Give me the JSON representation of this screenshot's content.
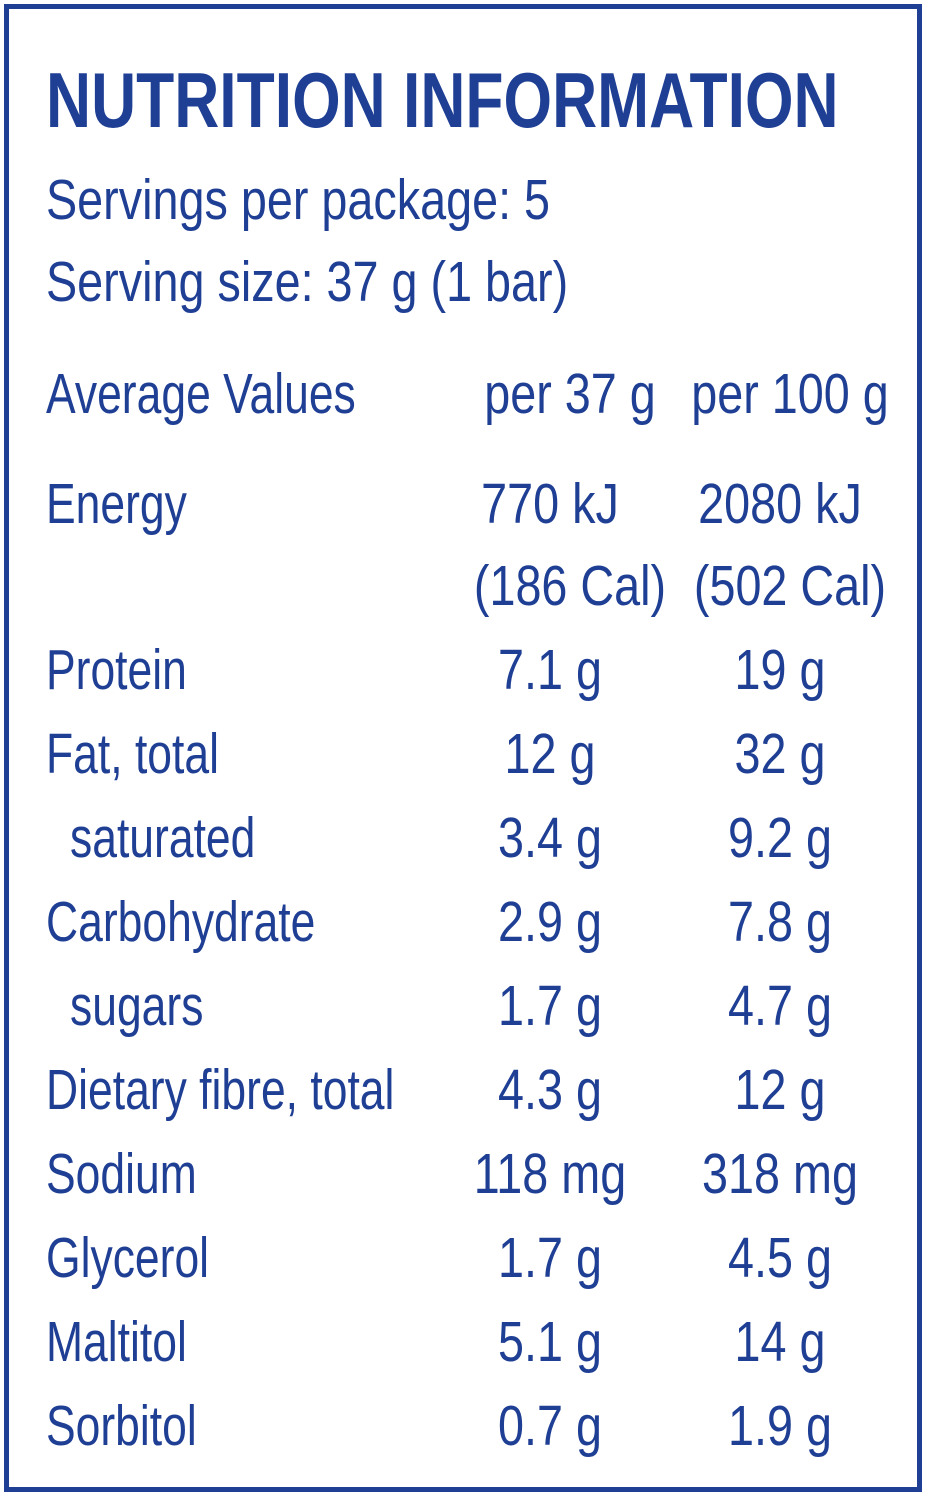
{
  "title": "NUTRITION INFORMATION",
  "servings_per_package": "Servings per package: 5",
  "serving_size": "Serving size: 37 g (1 bar)",
  "columns": {
    "label": "Average Values",
    "per_serving": "per 37 g",
    "per_100g": "per 100 g"
  },
  "energy": {
    "label": "Energy",
    "per_serving_kj": "770 kJ",
    "per_100g_kj": "2080 kJ",
    "per_serving_cal": "(186 Cal)",
    "per_100g_cal": "(502 Cal)"
  },
  "nutrients": [
    {
      "label": "Protein",
      "per_serving": "7.1 g",
      "per_100g": "19 g",
      "sub": false
    },
    {
      "label": "Fat, total",
      "per_serving": "12 g",
      "per_100g": "32 g",
      "sub": false
    },
    {
      "label": "saturated",
      "per_serving": "3.4 g",
      "per_100g": "9.2 g",
      "sub": true
    },
    {
      "label": "Carbohydrate",
      "per_serving": "2.9 g",
      "per_100g": "7.8 g",
      "sub": false
    },
    {
      "label": "sugars",
      "per_serving": "1.7 g",
      "per_100g": "4.7 g",
      "sub": true
    },
    {
      "label": "Dietary fibre, total",
      "per_serving": "4.3 g",
      "per_100g": "12 g",
      "sub": false
    },
    {
      "label": "Sodium",
      "per_serving": "118 mg",
      "per_100g": "318 mg",
      "sub": false
    },
    {
      "label": "Glycerol",
      "per_serving": "1.7 g",
      "per_100g": "4.5 g",
      "sub": false
    },
    {
      "label": "Maltitol",
      "per_serving": "5.1 g",
      "per_100g": "14 g",
      "sub": false
    },
    {
      "label": "Sorbitol",
      "per_serving": "0.7 g",
      "per_100g": "1.9 g",
      "sub": false
    }
  ],
  "colors": {
    "text": "#1f3f95",
    "border": "#1f3f95",
    "background": "#ffffff"
  }
}
